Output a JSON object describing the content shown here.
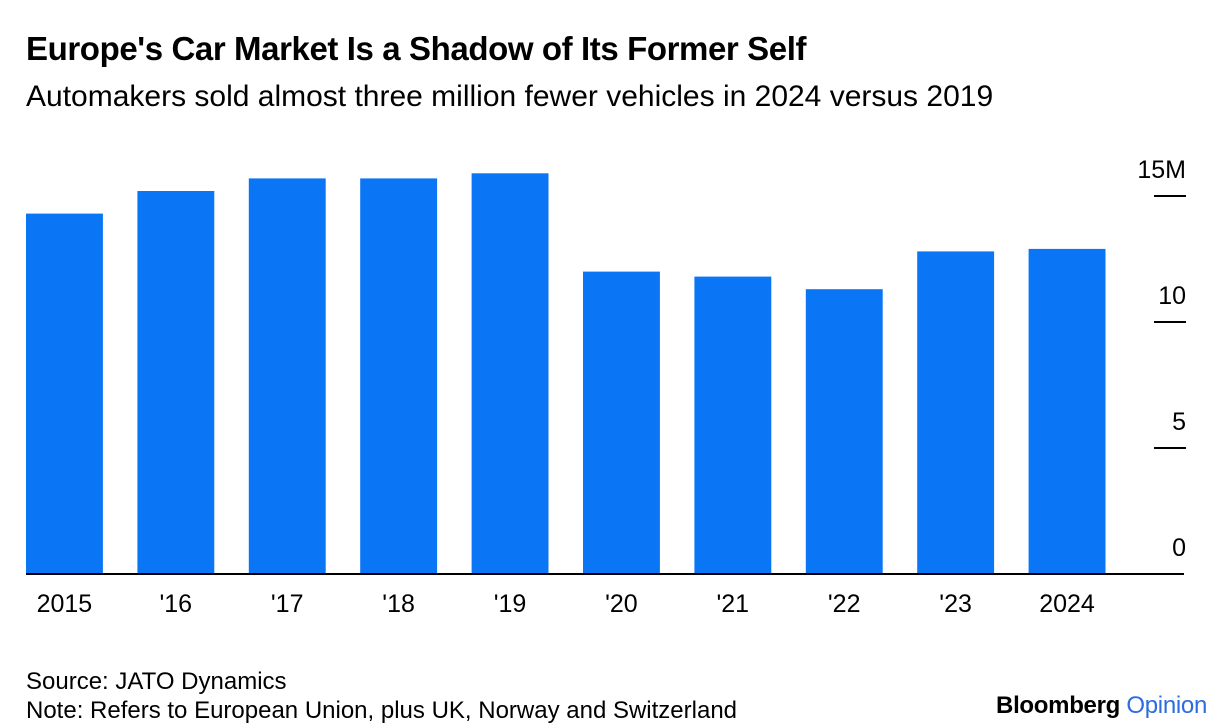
{
  "title": "Europe's Car Market Is a Shadow of Its Former Self",
  "subtitle": "Automakers sold almost three million fewer vehicles in 2024 versus 2019",
  "colors": {
    "bar": "#0a75f5",
    "axis": "#000000"
  },
  "chart_data": {
    "type": "bar",
    "categories": [
      "2015",
      "'16",
      "'17",
      "'18",
      "'19",
      "'20",
      "'21",
      "'22",
      "'23",
      "2024"
    ],
    "values": [
      14.3,
      15.2,
      15.7,
      15.7,
      15.9,
      12.0,
      11.8,
      11.3,
      12.8,
      12.9
    ],
    "ylim": [
      0,
      15
    ],
    "yticks": [
      {
        "value": 0,
        "label": "0"
      },
      {
        "value": 5,
        "label": "5"
      },
      {
        "value": 10,
        "label": "10"
      },
      {
        "value": 15,
        "label": "15M"
      }
    ],
    "xlabel": "",
    "ylabel": "",
    "grid": false,
    "legend": "none"
  },
  "footer": {
    "source": "Source: JATO Dynamics",
    "note": "Note: Refers to European Union, plus UK, Norway and Switzerland"
  },
  "brand": {
    "name": "Bloomberg",
    "section": "Opinion"
  }
}
